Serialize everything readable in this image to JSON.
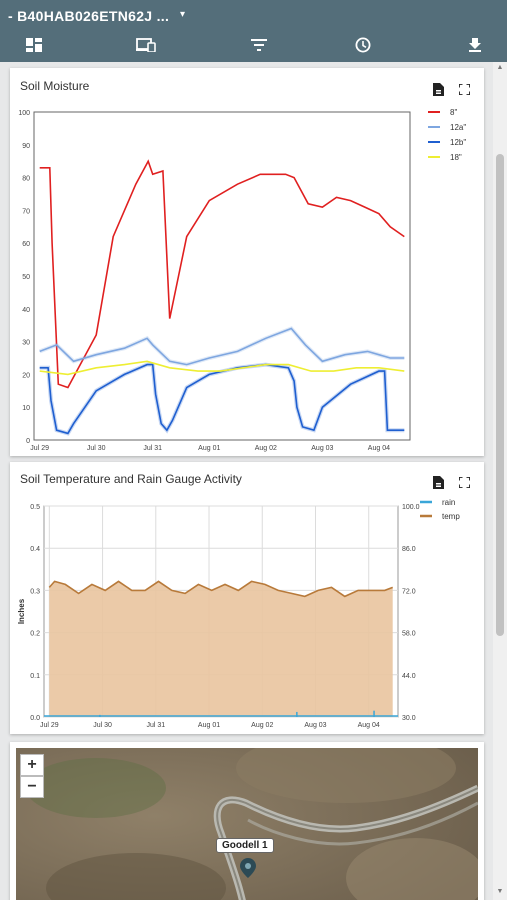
{
  "header": {
    "device_title": "- B40HAB026ETN62J ...",
    "caret": "▾",
    "toolbar": [
      {
        "name": "dashboard-icon"
      },
      {
        "name": "devices-icon"
      },
      {
        "name": "filter-icon"
      },
      {
        "name": "clock-icon"
      },
      {
        "name": "download-icon"
      }
    ]
  },
  "soil_moisture": {
    "title": "Soil Moisture",
    "icons": [
      "save-file-icon",
      "fullscreen-icon"
    ]
  },
  "soil_temp": {
    "title": "Soil Temperature and Rain Gauge Activity",
    "icons": [
      "save-file-icon",
      "fullscreen-icon"
    ]
  },
  "map": {
    "zoom_in": "+",
    "zoom_out": "−",
    "marker_label": "Goodell 1"
  },
  "colors": {
    "header_bg": "#546e7a",
    "s8": "#e02020",
    "s12a": "#7ea6e0",
    "s12b": "#1f5fd0",
    "s18": "#eeee33",
    "rain": "#3aa6d8",
    "temp_line": "#b87a3a",
    "temp_fill": "#e9c49e"
  },
  "chart_data": [
    {
      "type": "line",
      "title": "Soil Moisture",
      "categories": [
        "Jul 29",
        "Jul 30",
        "Jul 31",
        "Aug 01",
        "Aug 02",
        "Aug 03",
        "Aug 04"
      ],
      "ylim": [
        0,
        100
      ],
      "yticks": [
        0,
        10,
        20,
        30,
        40,
        50,
        60,
        70,
        80,
        90,
        100
      ],
      "legend_position": "top-right",
      "grid": false,
      "series": [
        {
          "name": "8\"",
          "color": "#e02020",
          "x": [
            0,
            0.18,
            0.22,
            0.33,
            0.5,
            1.0,
            1.3,
            1.7,
            1.92,
            2.0,
            2.18,
            2.3,
            2.6,
            3.0,
            3.5,
            3.9,
            4.35,
            4.5,
            4.75,
            5.0,
            5.25,
            5.5,
            5.75,
            6.0,
            6.2,
            6.45
          ],
          "values": [
            83,
            83,
            60,
            17,
            16,
            32,
            62,
            78,
            85,
            81,
            82,
            37,
            62,
            73,
            78,
            81,
            81,
            80,
            72,
            71,
            74,
            73,
            71,
            69,
            65,
            62
          ]
        },
        {
          "name": "12a\"",
          "color": "#7ea6e0",
          "x": [
            0,
            0.3,
            0.6,
            1.0,
            1.5,
            1.9,
            2.0,
            2.3,
            2.6,
            3.0,
            3.5,
            4.0,
            4.45,
            4.7,
            5.0,
            5.4,
            5.8,
            6.2,
            6.45
          ],
          "values": [
            27,
            29,
            24,
            26,
            28,
            31,
            29,
            24,
            23,
            25,
            27,
            31,
            34,
            29,
            24,
            26,
            27,
            25,
            25
          ]
        },
        {
          "name": "12b\"",
          "color": "#1f5fd0",
          "x": [
            0,
            0.15,
            0.2,
            0.3,
            0.5,
            0.6,
            1.0,
            1.5,
            1.9,
            2.0,
            2.05,
            2.15,
            2.25,
            2.35,
            2.6,
            3.0,
            3.5,
            4.0,
            4.4,
            4.5,
            4.55,
            4.65,
            4.85,
            5.0,
            5.5,
            6.0,
            6.1,
            6.15,
            6.45
          ],
          "values": [
            22,
            22,
            12,
            3,
            2,
            5,
            15,
            20,
            23,
            23,
            14,
            5,
            3,
            6,
            16,
            20,
            22,
            23,
            22,
            18,
            10,
            4,
            3,
            10,
            17,
            21,
            21,
            3,
            3
          ]
        },
        {
          "name": "18\"",
          "color": "#eeee33",
          "x": [
            0,
            0.5,
            1.0,
            1.5,
            1.9,
            2.3,
            2.8,
            3.2,
            3.6,
            4.0,
            4.4,
            4.8,
            5.2,
            5.6,
            6.0,
            6.45
          ],
          "values": [
            21,
            20,
            22,
            23,
            24,
            22,
            21,
            21,
            22,
            23,
            23,
            21,
            21,
            22,
            22,
            21
          ]
        }
      ]
    },
    {
      "type": "area",
      "title": "Soil Temperature and Rain Gauge Activity",
      "categories": [
        "Jul 29",
        "Jul 30",
        "Jul 31",
        "Aug 01",
        "Aug 02",
        "Aug 03",
        "Aug 04"
      ],
      "ylabel": "Inches",
      "ylim": [
        0,
        0.5
      ],
      "yticks": [
        "0.0",
        "0.1",
        "0.2",
        "0.3",
        "0.4",
        "0.5"
      ],
      "y2lim": [
        30,
        100
      ],
      "y2ticks": [
        "30.0",
        "44.0",
        "58.0",
        "72.0",
        "86.0",
        "100.0"
      ],
      "legend_position": "top-right",
      "grid": true,
      "series": [
        {
          "name": "rain",
          "color": "#3aa6d8",
          "axis": "left",
          "x": [
            0.95,
            4.65,
            6.1
          ],
          "values": [
            0.005,
            0.012,
            0.015
          ]
        },
        {
          "name": "temp",
          "color": "#b87a3a",
          "axis": "right",
          "x": [
            0,
            0.1,
            0.3,
            0.55,
            0.8,
            1.05,
            1.3,
            1.55,
            1.8,
            2.05,
            2.3,
            2.55,
            2.8,
            3.05,
            3.3,
            3.55,
            3.8,
            4.05,
            4.3,
            4.55,
            4.8,
            5.05,
            5.3,
            5.55,
            5.8,
            6.05,
            6.3,
            6.45
          ],
          "values": [
            73,
            75,
            74,
            71,
            74,
            72,
            75,
            72,
            72,
            75,
            72,
            71,
            74,
            72,
            74,
            72,
            75,
            74,
            72,
            71,
            70,
            72,
            73,
            70,
            72,
            72,
            72,
            73
          ]
        }
      ]
    }
  ]
}
